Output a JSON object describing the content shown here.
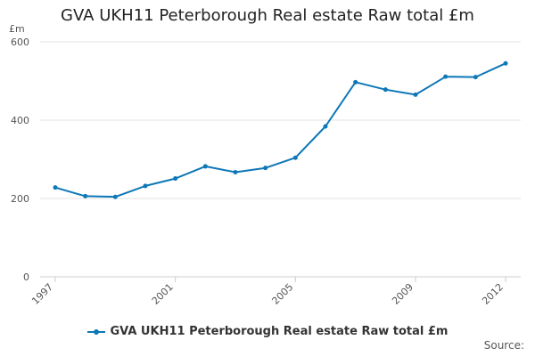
{
  "chart_data": {
    "type": "line",
    "title": "GVA UKH11 Peterborough Real estate Raw total £m",
    "ylabel": "£m",
    "xlabel": "",
    "x": [
      1997,
      1998,
      1999,
      2000,
      2001,
      2002,
      2003,
      2004,
      2005,
      2006,
      2007,
      2008,
      2009,
      2010,
      2011,
      2012
    ],
    "x_ticks": [
      "1997",
      "2001",
      "2005",
      "2009",
      "2012"
    ],
    "y_ticks": [
      "0",
      "200",
      "400",
      "600"
    ],
    "ylim": [
      0,
      600
    ],
    "grid": true,
    "legend_position": "bottom",
    "series": [
      {
        "name": "GVA UKH11 Peterborough Real estate Raw total £m",
        "color": "#0d77b7",
        "values": [
          228,
          206,
          204,
          232,
          251,
          282,
          267,
          278,
          304,
          384,
          497,
          478,
          465,
          511,
          510,
          545
        ]
      }
    ]
  },
  "source_label": "Source:"
}
